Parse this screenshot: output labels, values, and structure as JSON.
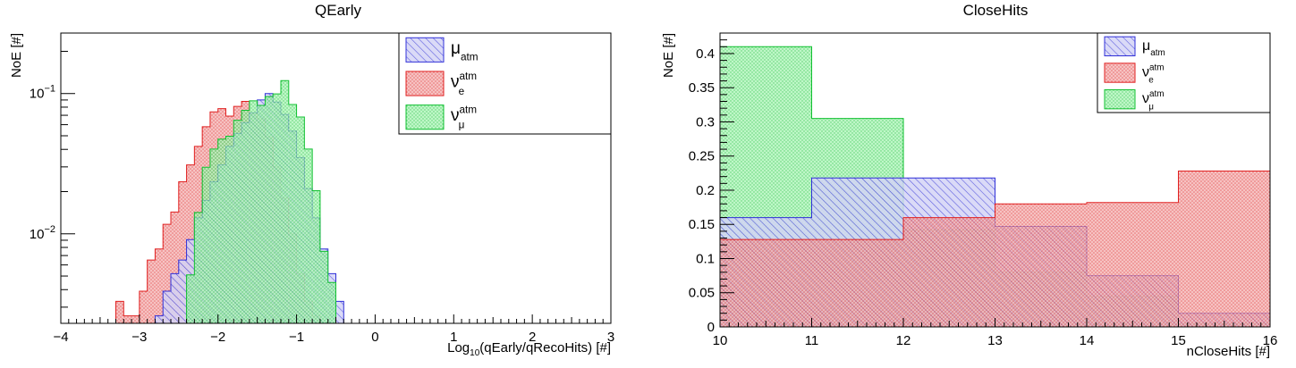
{
  "colors": {
    "mu": "#3030d8",
    "nue": "#e02020",
    "numu": "#10c030",
    "mu_fill": "#b8b8ee",
    "nue_fill": "#f4a0a0",
    "numu_fill": "#98f0a8"
  },
  "chart_data": [
    {
      "type": "histogram",
      "title": "QEarly",
      "xlabel": {
        "base": "Log",
        "sub": "10",
        "rest": "(qEarly/qRecoHits) [#]"
      },
      "ylabel": "NoE [#]",
      "yscale": "log",
      "xlim": [
        -4,
        3
      ],
      "ylim": [
        0.0023,
        0.27
      ],
      "xticks": [
        -4,
        -3,
        -2,
        -1,
        0,
        1,
        2,
        3
      ],
      "xtick_labels": [
        "−4",
        "−3",
        "−2",
        "−1",
        "0",
        "1",
        "2",
        "3"
      ],
      "yticks": [
        {
          "value": 0.1,
          "base": "10",
          "exp": "−1"
        },
        {
          "value": 0.01,
          "base": "10",
          "exp": "−2"
        }
      ],
      "bin_start": -3.3,
      "bin_width": 0.1,
      "legend": {
        "position": "top-right",
        "entries": [
          {
            "key": "mu",
            "symbol": "μ",
            "sub": "atm",
            "sup": ""
          },
          {
            "key": "nue",
            "symbol": "ν",
            "sub": "e",
            "sup": "atm"
          },
          {
            "key": "numu",
            "symbol": "ν",
            "sub": "μ",
            "sup": "atm"
          }
        ]
      },
      "series": [
        {
          "key": "nue",
          "values": [
            0.0033,
            0.0026,
            0.0026,
            0.0039,
            0.0065,
            0.0078,
            0.0117,
            0.0143,
            0.0235,
            0.031,
            0.042,
            0.058,
            0.074,
            0.078,
            0.069,
            0.081,
            0.088,
            0.072,
            0.066,
            0.049,
            0.03,
            0.018,
            0.01,
            0.0052,
            0.0033,
            0.0026
          ]
        },
        {
          "key": "mu",
          "bin_offset": 5,
          "values": [
            0.0026,
            0.0039,
            0.0052,
            0.0065,
            0.0091,
            0.013,
            0.0173,
            0.0235,
            0.031,
            0.042,
            0.052,
            0.062,
            0.073,
            0.09,
            0.1,
            0.087,
            0.071,
            0.054,
            0.035,
            0.021,
            0.013,
            0.0078,
            0.0052,
            0.0033
          ]
        },
        {
          "key": "numu",
          "bin_offset": 9,
          "values": [
            0.0051,
            0.0142,
            0.0298,
            0.0402,
            0.0473,
            0.0496,
            0.0645,
            0.0759,
            0.0888,
            0.0823,
            0.0952,
            0.0994,
            0.1237,
            0.0835,
            0.0681,
            0.0402,
            0.0203,
            0.0075,
            0.0045
          ]
        }
      ]
    },
    {
      "type": "histogram",
      "title": "CloseHits",
      "xlabel": "nCloseHits [#]",
      "ylabel": "NoE [#]",
      "yscale": "linear",
      "xlim": [
        10,
        16
      ],
      "ylim": [
        0,
        0.43
      ],
      "xticks": [
        10,
        11,
        12,
        13,
        14,
        15,
        16
      ],
      "xtick_labels": [
        "10",
        "11",
        "12",
        "13",
        "14",
        "15",
        "16"
      ],
      "yticks": [
        0,
        0.05,
        0.1,
        0.15,
        0.2,
        0.25,
        0.3,
        0.35,
        0.4
      ],
      "ytick_labels": [
        "0",
        "0.05",
        "0.1",
        "0.15",
        "0.2",
        "0.25",
        "0.3",
        "0.35",
        "0.4"
      ],
      "bin_start": 10,
      "bin_width": 1,
      "legend": {
        "position": "top-right",
        "entries": [
          {
            "key": "mu",
            "symbol": "μ",
            "sub": "atm",
            "sup": ""
          },
          {
            "key": "nue",
            "symbol": "ν",
            "sub": "e",
            "sup": "atm"
          },
          {
            "key": "numu",
            "symbol": "ν",
            "sub": "μ",
            "sup": "atm"
          }
        ]
      },
      "series": [
        {
          "key": "numu",
          "values": [
            0.41,
            0.305,
            0.142,
            0.08,
            0.045,
            0.005
          ]
        },
        {
          "key": "mu",
          "values": [
            0.16,
            0.218,
            0.218,
            0.147,
            0.075,
            0.02
          ]
        },
        {
          "key": "nue",
          "values": [
            0.128,
            0.128,
            0.16,
            0.18,
            0.182,
            0.228
          ]
        }
      ]
    }
  ]
}
